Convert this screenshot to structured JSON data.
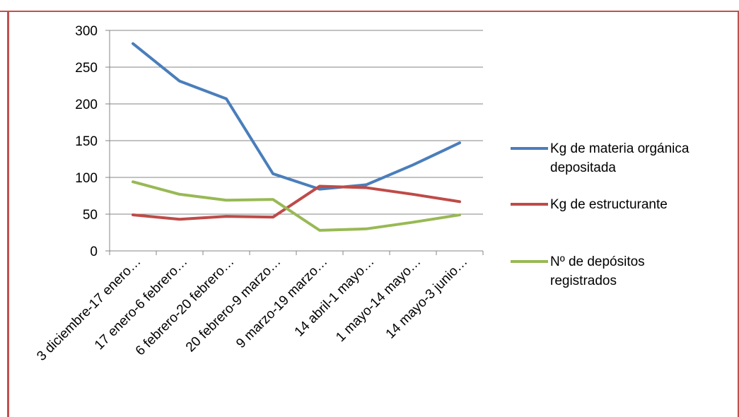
{
  "chart_data": {
    "type": "line",
    "categories": [
      "3 diciembre-17 enero…",
      "17 enero-6 febrero…",
      "6 febrero-20 febrero…",
      "20 febrero-9 marzo…",
      "9 marzo-19 marzo…",
      "14 abril-1 mayo…",
      "1 mayo-14 mayo…",
      "14 mayo-3 junio…"
    ],
    "series": [
      {
        "name": "Kg de materia orgánica depositada",
        "legend_lines": [
          "Kg de materia orgánica",
          "depositada"
        ],
        "color": "#4a7ebb",
        "values": [
          282,
          231,
          207,
          105,
          84,
          90,
          117,
          147
        ]
      },
      {
        "name": "Kg de estructurante",
        "legend_lines": [
          "Kg de estructurante"
        ],
        "color": "#be4b48",
        "values": [
          49,
          43,
          47,
          46,
          88,
          86,
          77,
          67
        ]
      },
      {
        "name": "Nº de depósitos registrados",
        "legend_lines": [
          "Nº de depósitos",
          "registrados"
        ],
        "color": "#98b954",
        "values": [
          94,
          77,
          69,
          70,
          28,
          30,
          39,
          49
        ]
      }
    ],
    "yticks": [
      "0",
      "50",
      "100",
      "150",
      "200",
      "250",
      "300"
    ],
    "ylim": [
      0,
      300
    ],
    "grid": true,
    "legend": "right",
    "title": "",
    "xlabel": "",
    "ylabel": ""
  },
  "colors": {
    "frame": "#c0504d",
    "grid": "#868686",
    "axis": "#868686"
  }
}
